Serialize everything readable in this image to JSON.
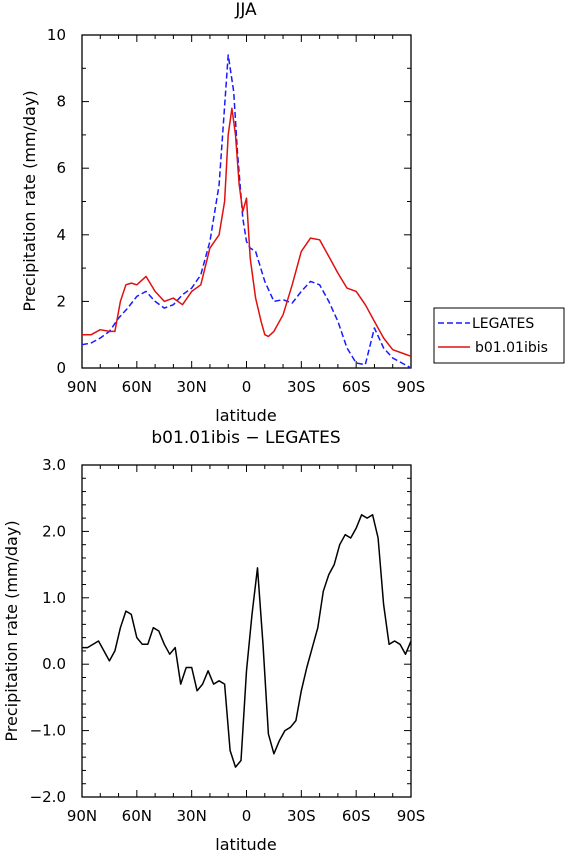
{
  "chart_data": [
    {
      "type": "line",
      "title": "JJA",
      "xlabel": "latitude",
      "ylabel": "Precipitation rate (mm/day)",
      "xlim": [
        90,
        -90
      ],
      "ylim": [
        0,
        10
      ],
      "xticks": [
        90,
        60,
        30,
        0,
        -30,
        -60,
        -90
      ],
      "xtick_labels": [
        "90N",
        "60N",
        "30N",
        "0",
        "30S",
        "60S",
        "90S"
      ],
      "yticks": [
        0,
        2,
        4,
        6,
        8,
        10
      ],
      "ytick_labels": [
        "0",
        "2",
        "4",
        "6",
        "8",
        "10"
      ],
      "legend_position": "right",
      "series": [
        {
          "name": "LEGATES",
          "color": "#1a1aff",
          "dash": "dashed",
          "x": [
            90,
            85,
            80,
            75,
            70,
            65,
            60,
            55,
            50,
            45,
            40,
            35,
            30,
            25,
            20,
            15,
            10,
            7,
            5,
            2,
            0,
            -2,
            -5,
            -10,
            -15,
            -20,
            -25,
            -30,
            -35,
            -40,
            -45,
            -50,
            -55,
            -60,
            -65,
            -70,
            -75,
            -80,
            -85,
            -90
          ],
          "values": [
            0.7,
            0.75,
            0.9,
            1.1,
            1.5,
            1.8,
            2.15,
            2.3,
            2.0,
            1.8,
            1.9,
            2.2,
            2.4,
            2.8,
            3.8,
            5.5,
            9.4,
            8.3,
            6.5,
            4.5,
            3.8,
            3.6,
            3.5,
            2.6,
            2.0,
            2.05,
            1.95,
            2.3,
            2.6,
            2.5,
            2.0,
            1.4,
            0.6,
            0.15,
            0.1,
            1.2,
            0.6,
            0.3,
            0.15,
            0.0
          ]
        },
        {
          "name": "b01.01ibis",
          "color": "#e01010",
          "dash": "solid",
          "x": [
            90,
            85,
            80,
            75,
            72,
            69,
            66,
            63,
            60,
            55,
            50,
            45,
            40,
            35,
            30,
            25,
            20,
            15,
            12,
            10,
            8,
            6,
            4,
            2,
            0,
            -2,
            -5,
            -8,
            -10,
            -12,
            -15,
            -20,
            -25,
            -30,
            -35,
            -40,
            -45,
            -50,
            -55,
            -60,
            -65,
            -70,
            -75,
            -80,
            -85,
            -90
          ],
          "values": [
            1.0,
            1.0,
            1.15,
            1.1,
            1.1,
            2.0,
            2.5,
            2.55,
            2.5,
            2.75,
            2.3,
            2.0,
            2.1,
            1.9,
            2.3,
            2.5,
            3.6,
            4.0,
            5.0,
            7.0,
            7.8,
            7.0,
            5.5,
            4.7,
            5.1,
            3.3,
            2.1,
            1.4,
            1.0,
            0.95,
            1.1,
            1.6,
            2.5,
            3.5,
            3.9,
            3.85,
            3.35,
            2.85,
            2.4,
            2.3,
            1.9,
            1.4,
            0.9,
            0.55,
            0.45,
            0.35
          ]
        }
      ]
    },
    {
      "type": "line",
      "title": "b01.01ibis − LEGATES",
      "xlabel": "latitude",
      "ylabel": "Precipitation rate (mm/day)",
      "xlim": [
        90,
        -90
      ],
      "ylim": [
        -2,
        3
      ],
      "xticks": [
        90,
        60,
        30,
        0,
        -30,
        -60,
        -90
      ],
      "xtick_labels": [
        "90N",
        "60N",
        "30N",
        "0",
        "30S",
        "60S",
        "90S"
      ],
      "yticks": [
        -2,
        -1,
        0,
        1,
        2,
        3
      ],
      "ytick_labels": [
        "−2.0",
        "−1.0",
        "0.0",
        "1.0",
        "2.0",
        "3.0"
      ],
      "series": [
        {
          "color": "#000000",
          "dash": "solid",
          "x": [
            90,
            87,
            81,
            75,
            72,
            69,
            66,
            63,
            60,
            57,
            54,
            51,
            48,
            45,
            42,
            39,
            36,
            33,
            30,
            27,
            24,
            21,
            18,
            15,
            12,
            9,
            6,
            3,
            0,
            -3,
            -6,
            -9,
            -12,
            -15,
            -18,
            -21,
            -24,
            -27,
            -30,
            -33,
            -36,
            -39,
            -42,
            -45,
            -48,
            -51,
            -54,
            -57,
            -60,
            -63,
            -66,
            -69,
            -72,
            -75,
            -78,
            -81,
            -84,
            -87,
            -90
          ],
          "values": [
            0.25,
            0.25,
            0.35,
            0.05,
            0.2,
            0.55,
            0.8,
            0.75,
            0.4,
            0.3,
            0.3,
            0.55,
            0.5,
            0.3,
            0.15,
            0.25,
            -0.3,
            -0.05,
            -0.05,
            -0.4,
            -0.3,
            -0.1,
            -0.3,
            -0.25,
            -0.3,
            -1.3,
            -1.55,
            -1.45,
            -0.1,
            0.75,
            1.45,
            0.3,
            -1.05,
            -1.35,
            -1.15,
            -1.0,
            -0.95,
            -0.85,
            -0.4,
            -0.05,
            0.25,
            0.55,
            1.1,
            1.35,
            1.5,
            1.8,
            1.95,
            1.9,
            2.05,
            2.25,
            2.2,
            2.25,
            1.9,
            0.9,
            0.3,
            0.35,
            0.3,
            0.15,
            0.35
          ]
        }
      ]
    }
  ]
}
